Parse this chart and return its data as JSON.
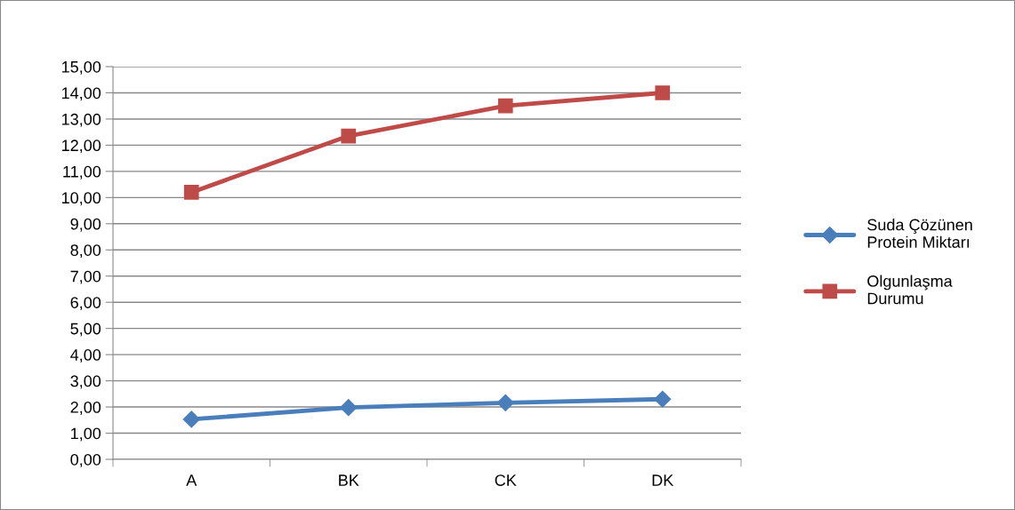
{
  "chart_data": {
    "type": "line",
    "categories": [
      "A",
      "BK",
      "CK",
      "DK"
    ],
    "series": [
      {
        "name": "Suda Çözünen Protein Miktarı",
        "color": "#4a7ebb",
        "marker": "diamond",
        "values": [
          1.53,
          1.98,
          2.16,
          2.3
        ]
      },
      {
        "name": "Olgunlaşma Durumu",
        "color": "#be4b48",
        "marker": "square",
        "values": [
          10.2,
          12.35,
          13.5,
          14.0
        ]
      }
    ],
    "ylim": [
      0,
      15
    ],
    "yticks": [
      {
        "value": 0,
        "label": "0,00"
      },
      {
        "value": 1,
        "label": "1,00"
      },
      {
        "value": 2,
        "label": "2,00"
      },
      {
        "value": 3,
        "label": "3,00"
      },
      {
        "value": 4,
        "label": "4,00"
      },
      {
        "value": 5,
        "label": "5,00"
      },
      {
        "value": 6,
        "label": "6,00"
      },
      {
        "value": 7,
        "label": "7,00"
      },
      {
        "value": 8,
        "label": "8,00"
      },
      {
        "value": 9,
        "label": "9,00"
      },
      {
        "value": 10,
        "label": "10,00"
      },
      {
        "value": 11,
        "label": "11,00"
      },
      {
        "value": 12,
        "label": "12,00"
      },
      {
        "value": 13,
        "label": "13,00"
      },
      {
        "value": 14,
        "label": "14,00"
      },
      {
        "value": 15,
        "label": "15,00"
      }
    ],
    "grid": "y",
    "legend": "right",
    "line_style": "solid"
  }
}
